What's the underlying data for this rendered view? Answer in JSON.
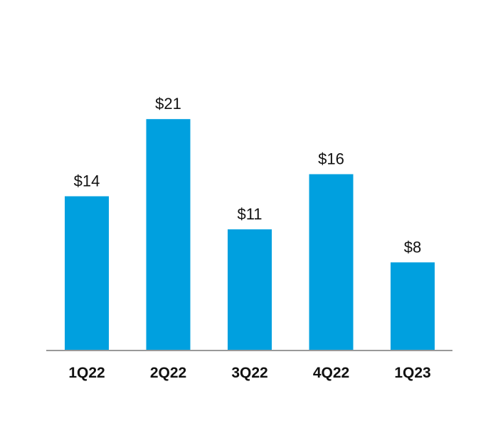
{
  "chart_data": {
    "type": "bar",
    "categories": [
      "1Q22",
      "2Q22",
      "3Q22",
      "4Q22",
      "1Q23"
    ],
    "values": [
      14,
      21,
      11,
      16,
      8
    ],
    "value_labels": [
      "$14",
      "$21",
      "$11",
      "$16",
      "$8"
    ],
    "title": "",
    "xlabel": "",
    "ylabel": "",
    "ylim": [
      0,
      21.4
    ],
    "grid": false,
    "legend": "none",
    "bar_color": "#00A0DF",
    "axis_color": "#999999"
  }
}
